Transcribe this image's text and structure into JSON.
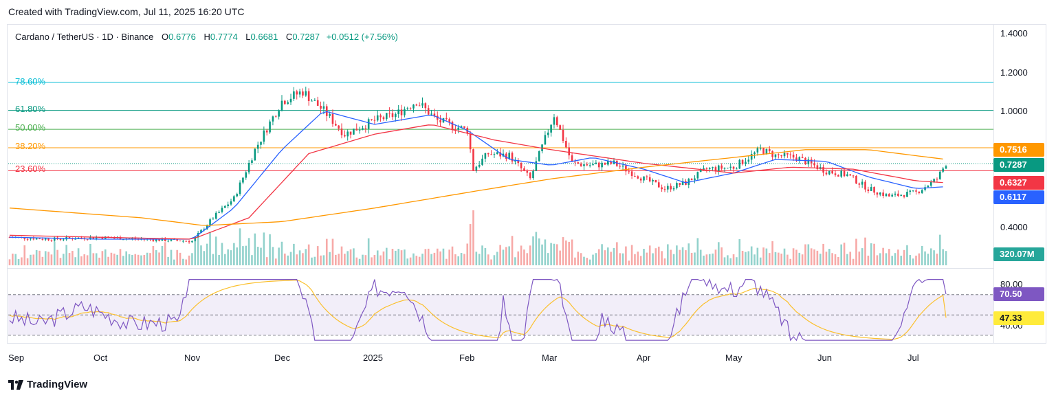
{
  "header": {
    "created": "Created with TradingView.com, Jul 11, 2025 16:20 UTC"
  },
  "legend": {
    "symbol": "Cardano / TetherUS · 1D · Binance",
    "o_label": "O",
    "o": "0.6776",
    "h_label": "H",
    "h": "0.7774",
    "l_label": "L",
    "l": "0.6681",
    "c_label": "C",
    "c": "0.7287",
    "change": "+0.0512 (+7.56%)"
  },
  "fib_levels": [
    {
      "label": "78.60%",
      "value": 1.147,
      "color": "#00bcd4"
    },
    {
      "label": "61.80%",
      "value": 1.002,
      "color": "#089981"
    },
    {
      "label": "50.00%",
      "value": 0.905,
      "color": "#4caf50"
    },
    {
      "label": "38.20%",
      "value": 0.81,
      "color": "#ff9800"
    },
    {
      "label": "23.60%",
      "value": 0.692,
      "color": "#f23645"
    }
  ],
  "price_axis_ticks": [
    "1.4000",
    "1.2000",
    "1.0000",
    "0.4000"
  ],
  "price_tags": [
    {
      "text": "0.7516",
      "color": "#ff9800"
    },
    {
      "text": "0.7287",
      "color": "#089981"
    },
    {
      "text": "0.6327",
      "color": "#f23645"
    },
    {
      "text": "0.6117",
      "color": "#2962ff"
    },
    {
      "text": "320.07M",
      "color": "#26a69a"
    }
  ],
  "rsi": {
    "axis_ticks": [
      "80.00",
      "40.00"
    ],
    "tags": [
      {
        "text": "70.50",
        "color": "#7e57c2"
      },
      {
        "text": "47.33",
        "color": "#ffeb3b"
      }
    ]
  },
  "time_axis": [
    "Sep",
    "Oct",
    "Nov",
    "Dec",
    "2025",
    "Feb",
    "Mar",
    "Apr",
    "May",
    "Jun",
    "Jul"
  ],
  "brand": "TradingView",
  "chart_data": {
    "type": "candlestick",
    "title": "Cardano / TetherUS · 1D · Binance",
    "x_range": [
      "2024-09-01",
      "2025-07-11"
    ],
    "ylim": [
      0.28,
      1.45
    ],
    "series": [
      {
        "name": "",
        "color": "#089981",
        "type": "close (approx.)",
        "x": [
          "2024-09-01",
          "2024-09-15",
          "2024-10-01",
          "2024-10-15",
          "2024-11-01",
          "2024-11-08",
          "2024-11-15",
          "2024-11-22",
          "2024-12-01",
          "2024-12-08",
          "2024-12-15",
          "2024-12-22",
          "2025-01-01",
          "2025-01-08",
          "2025-01-15",
          "2025-01-22",
          "2025-02-01",
          "2025-02-03",
          "2025-02-08",
          "2025-02-15",
          "2025-02-22",
          "2025-03-02",
          "2025-03-08",
          "2025-03-15",
          "2025-03-22",
          "2025-04-01",
          "2025-04-08",
          "2025-04-15",
          "2025-04-22",
          "2025-05-01",
          "2025-05-10",
          "2025-05-15",
          "2025-05-22",
          "2025-06-01",
          "2025-06-08",
          "2025-06-15",
          "2025-06-22",
          "2025-07-01",
          "2025-07-08",
          "2025-07-11"
        ],
        "values": [
          0.35,
          0.34,
          0.35,
          0.34,
          0.33,
          0.45,
          0.55,
          0.8,
          1.05,
          1.1,
          1.0,
          0.88,
          0.95,
          0.98,
          1.05,
          0.95,
          0.9,
          0.7,
          0.78,
          0.77,
          0.65,
          0.98,
          0.73,
          0.72,
          0.73,
          0.65,
          0.6,
          0.63,
          0.7,
          0.71,
          0.8,
          0.77,
          0.76,
          0.69,
          0.67,
          0.6,
          0.56,
          0.58,
          0.65,
          0.73
        ]
      },
      {
        "name": "",
        "color": "#2962ff",
        "type": "SMA 20 (approx.)",
        "x": [
          "2024-09-01",
          "2024-10-01",
          "2024-11-01",
          "2024-11-15",
          "2024-12-01",
          "2024-12-15",
          "2025-01-01",
          "2025-01-20",
          "2025-02-01",
          "2025-02-15",
          "2025-03-01",
          "2025-03-15",
          "2025-04-01",
          "2025-04-15",
          "2025-05-01",
          "2025-05-15",
          "2025-06-01",
          "2025-06-15",
          "2025-07-01",
          "2025-07-11"
        ],
        "values": [
          0.35,
          0.34,
          0.34,
          0.5,
          0.8,
          1.0,
          0.93,
          0.98,
          0.9,
          0.75,
          0.72,
          0.76,
          0.7,
          0.63,
          0.68,
          0.75,
          0.74,
          0.66,
          0.6,
          0.61
        ]
      },
      {
        "name": "",
        "color": "#f23645",
        "type": "SMA 50 (approx.)",
        "x": [
          "2024-09-01",
          "2024-10-01",
          "2024-11-01",
          "2024-11-20",
          "2024-12-10",
          "2025-01-01",
          "2025-01-20",
          "2025-02-10",
          "2025-03-01",
          "2025-04-01",
          "2025-05-01",
          "2025-05-20",
          "2025-06-10",
          "2025-07-01",
          "2025-07-11"
        ],
        "values": [
          0.36,
          0.35,
          0.34,
          0.45,
          0.78,
          0.88,
          0.93,
          0.85,
          0.8,
          0.73,
          0.68,
          0.71,
          0.7,
          0.64,
          0.63
        ]
      },
      {
        "name": "",
        "color": "#ff9800",
        "type": "SMA 200 (approx.)",
        "x": [
          "2024-09-01",
          "2024-10-15",
          "2024-11-05",
          "2024-12-01",
          "2025-01-01",
          "2025-02-01",
          "2025-03-01",
          "2025-04-01",
          "2025-05-01",
          "2025-05-25",
          "2025-06-15",
          "2025-07-11"
        ],
        "values": [
          0.5,
          0.45,
          0.41,
          0.43,
          0.5,
          0.58,
          0.65,
          0.71,
          0.76,
          0.8,
          0.8,
          0.75
        ]
      }
    ],
    "volume": {
      "last": "320.07M"
    },
    "rsi": {
      "last": 70.5,
      "ma_last": 47.33,
      "ylim": [
        20,
        100
      ],
      "bands": [
        70,
        30
      ]
    }
  }
}
